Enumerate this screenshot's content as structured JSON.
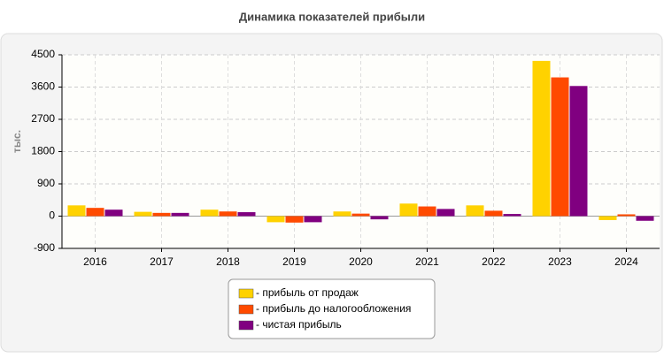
{
  "chart_data": {
    "type": "bar",
    "title": "Динамика показателей прибыли",
    "y_label": "тыс.",
    "categories": [
      "2016",
      "2017",
      "2018",
      "2019",
      "2020",
      "2021",
      "2022",
      "2023",
      "2024"
    ],
    "series": [
      {
        "name": "- прибыль от продаж",
        "color": "#ffd200",
        "values": [
          300,
          120,
          180,
          -170,
          130,
          350,
          300,
          4330,
          -110
        ]
      },
      {
        "name": "- прибыль до налогообложения",
        "color": "#ff4a00",
        "values": [
          230,
          90,
          130,
          -180,
          70,
          270,
          150,
          3870,
          50
        ]
      },
      {
        "name": "- чистая прибыль",
        "color": "#800080",
        "values": [
          180,
          90,
          110,
          -170,
          -90,
          200,
          60,
          3630,
          -130
        ]
      }
    ],
    "ylim": [
      -900,
      4500
    ],
    "yticks": [
      -900,
      0,
      900,
      1800,
      2700,
      3600,
      4500
    ],
    "grid": true
  }
}
